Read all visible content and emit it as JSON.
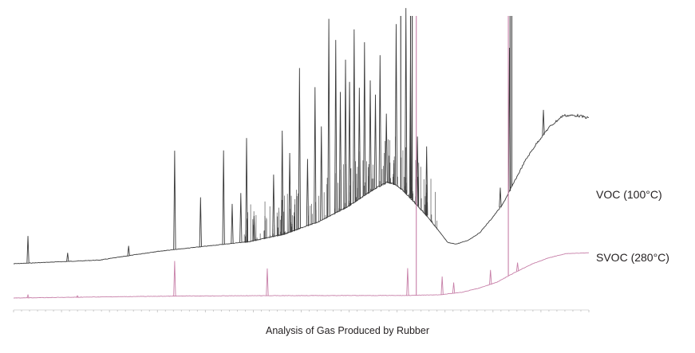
{
  "chart_data": {
    "type": "line",
    "title": "Analysis of Gas Produced by Rubber",
    "xlabel": "",
    "ylabel": "",
    "grid": false,
    "axis": "minor tick marks along the bottom, no tick labels",
    "series": [
      {
        "name": "VOC (100°C)",
        "color": "#3a3a3a",
        "baseline": [
          [
            0.0,
            0.0
          ],
          [
            0.15,
            0.015
          ],
          [
            0.25,
            0.05
          ],
          [
            0.33,
            0.07
          ],
          [
            0.41,
            0.09
          ],
          [
            0.47,
            0.12
          ],
          [
            0.53,
            0.17
          ],
          [
            0.58,
            0.23
          ],
          [
            0.625,
            0.3
          ],
          [
            0.65,
            0.33
          ],
          [
            0.665,
            0.32
          ],
          [
            0.68,
            0.29
          ],
          [
            0.7,
            0.24
          ],
          [
            0.72,
            0.19
          ],
          [
            0.74,
            0.13
          ],
          [
            0.755,
            0.085
          ],
          [
            0.77,
            0.08
          ],
          [
            0.79,
            0.095
          ],
          [
            0.81,
            0.125
          ],
          [
            0.83,
            0.18
          ],
          [
            0.85,
            0.24
          ],
          [
            0.87,
            0.33
          ],
          [
            0.89,
            0.42
          ],
          [
            0.91,
            0.49
          ],
          [
            0.93,
            0.55
          ],
          [
            0.955,
            0.6
          ],
          [
            0.98,
            0.6
          ],
          [
            1.0,
            0.59
          ]
        ],
        "peaks": [
          [
            0.025,
            0.11
          ],
          [
            0.094,
            0.035
          ],
          [
            0.2,
            0.04
          ],
          [
            0.28,
            0.4
          ],
          [
            0.325,
            0.2
          ],
          [
            0.365,
            0.38
          ],
          [
            0.38,
            0.16
          ],
          [
            0.395,
            0.2
          ],
          [
            0.405,
            0.42
          ],
          [
            0.418,
            0.1
          ],
          [
            0.452,
            0.25
          ],
          [
            0.467,
            0.42
          ],
          [
            0.48,
            0.32
          ],
          [
            0.497,
            0.65
          ],
          [
            0.511,
            0.27
          ],
          [
            0.524,
            0.55
          ],
          [
            0.535,
            0.38
          ],
          [
            0.548,
            0.8
          ],
          [
            0.56,
            0.7
          ],
          [
            0.568,
            0.48
          ],
          [
            0.577,
            0.6
          ],
          [
            0.584,
            0.5
          ],
          [
            0.592,
            0.7
          ],
          [
            0.601,
            0.45
          ],
          [
            0.61,
            0.62
          ],
          [
            0.62,
            0.45
          ],
          [
            0.629,
            0.38
          ],
          [
            0.637,
            0.53
          ],
          [
            0.648,
            0.28
          ],
          [
            0.665,
            0.65
          ],
          [
            0.682,
            0.75
          ],
          [
            0.69,
            0.6
          ],
          [
            0.702,
            0.28
          ],
          [
            0.718,
            0.28
          ],
          [
            0.846,
            0.08
          ],
          [
            0.862,
            0.58
          ],
          [
            0.921,
            0.1
          ]
        ],
        "clipped_peaks": [
          0.673,
          0.69,
          0.693,
          0.863,
          0.866
        ]
      },
      {
        "name": "SVOC (280°C)",
        "color": "#c77fa8",
        "baseline": [
          [
            0.0,
            0.0
          ],
          [
            0.1,
            0.01
          ],
          [
            0.2,
            0.02
          ],
          [
            0.3,
            0.028
          ],
          [
            0.4,
            0.032
          ],
          [
            0.5,
            0.034
          ],
          [
            0.6,
            0.035
          ],
          [
            0.68,
            0.035
          ],
          [
            0.74,
            0.045
          ],
          [
            0.78,
            0.08
          ],
          [
            0.81,
            0.14
          ],
          [
            0.84,
            0.22
          ],
          [
            0.87,
            0.35
          ],
          [
            0.9,
            0.47
          ],
          [
            0.93,
            0.56
          ],
          [
            0.96,
            0.62
          ],
          [
            1.0,
            0.63
          ]
        ],
        "peaks": [
          [
            0.025,
            0.04
          ],
          [
            0.111,
            0.02
          ],
          [
            0.28,
            0.49
          ],
          [
            0.441,
            0.38
          ],
          [
            0.685,
            0.38
          ],
          [
            0.745,
            0.25
          ],
          [
            0.765,
            0.15
          ],
          [
            0.829,
            0.2
          ],
          [
            0.876,
            0.12
          ]
        ],
        "clipped_peaks": [
          0.7,
          0.86
        ]
      }
    ]
  }
}
